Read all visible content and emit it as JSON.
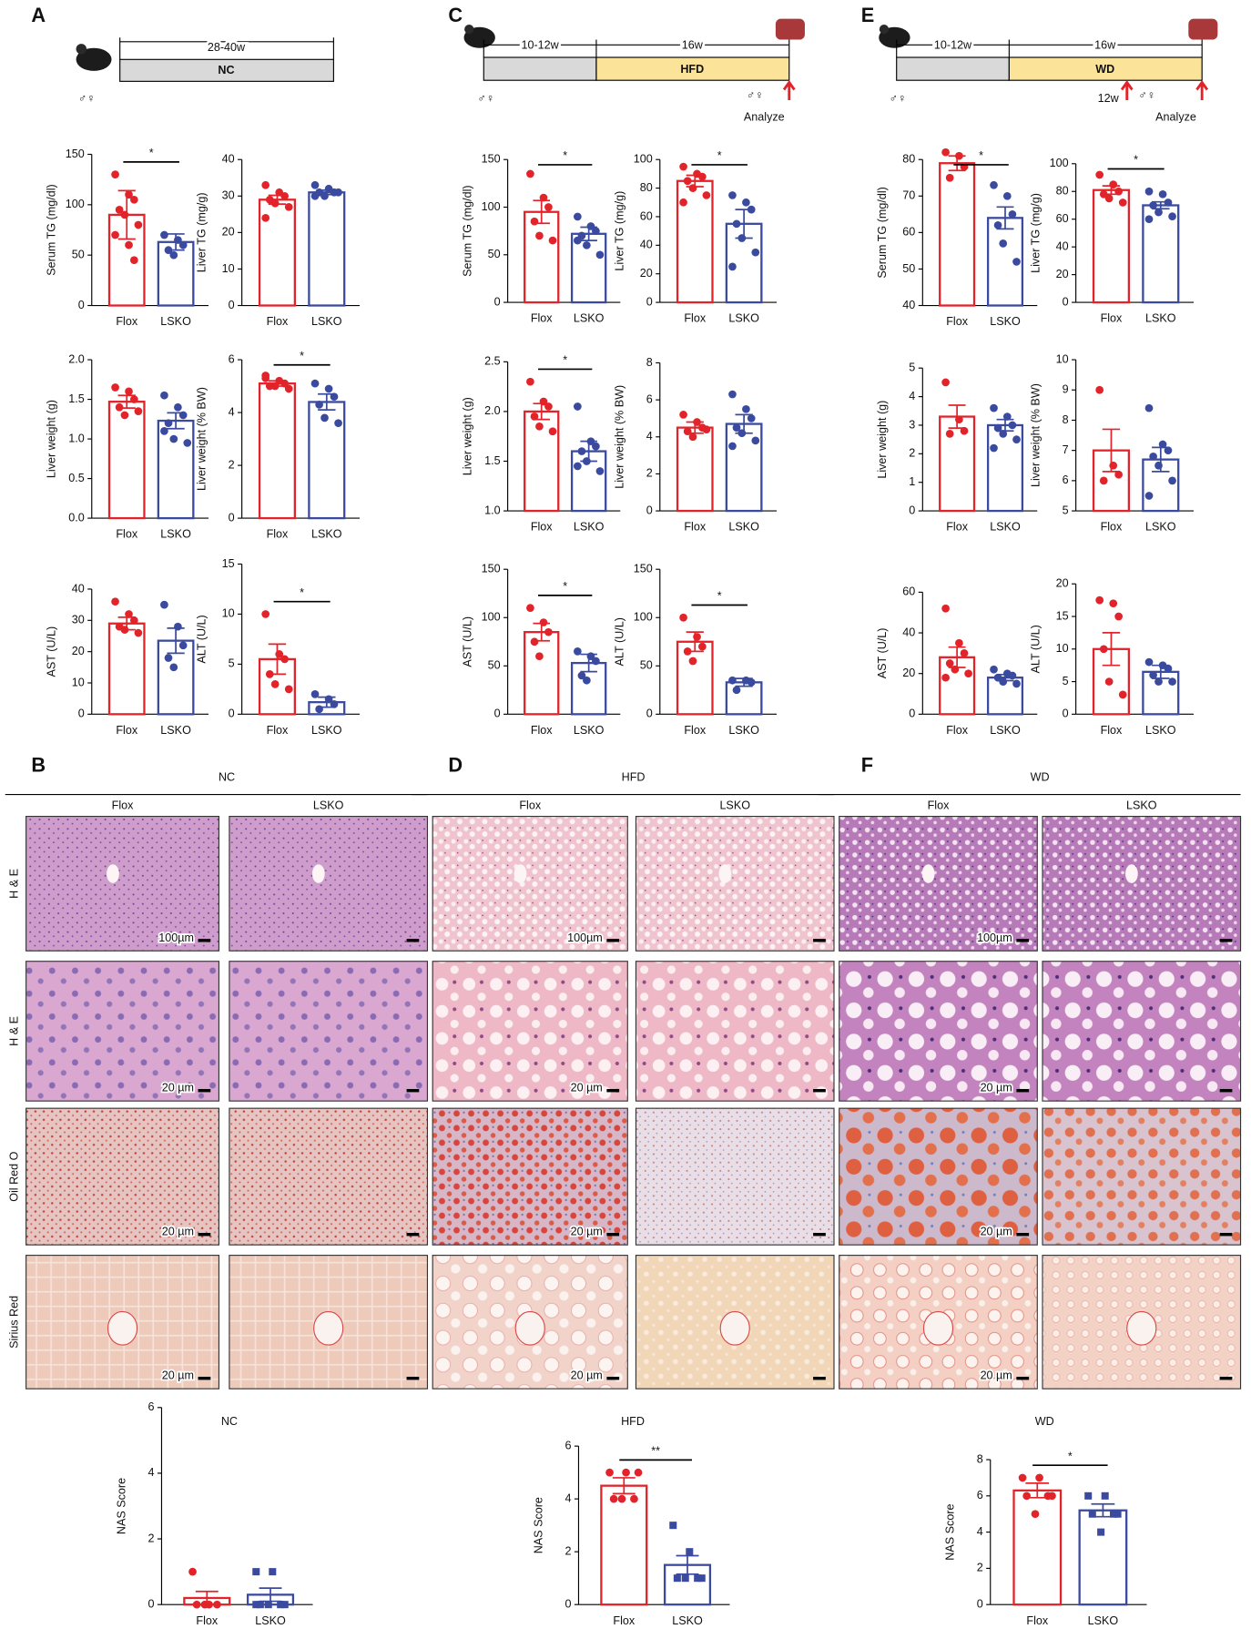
{
  "figure": {
    "panels": [
      "A",
      "B",
      "C",
      "D",
      "E",
      "F"
    ],
    "timelines": [
      {
        "duration": "28-40w",
        "diet": "NC",
        "sex": "♂♀"
      },
      {
        "early": "10-12w",
        "late": "16w",
        "diet": "HFD",
        "sex": "♂♀",
        "analyze": "Analyze"
      },
      {
        "early": "10-12w",
        "late": "16w",
        "diet": "WD",
        "sex": "♂♀",
        "mid": "12w",
        "analyze": "Analyze"
      }
    ],
    "histology": [
      {
        "diet": "NC",
        "columns": [
          "Flox",
          "LSKO"
        ]
      },
      {
        "diet": "HFD",
        "columns": [
          "Flox",
          "LSKO"
        ]
      },
      {
        "diet": "WD",
        "columns": [
          "Flox",
          "LSKO"
        ]
      }
    ],
    "stains": [
      "H & E",
      "H & E",
      "Oil Red O",
      "Sirius Red"
    ],
    "scale_bars": [
      "100µm",
      "20 µm"
    ],
    "nas_titles": [
      "NC",
      "HFD",
      "WD"
    ]
  },
  "chart_data": [
    {
      "type": "bar",
      "ylabel": "Serum TG (mg/dl)",
      "categories": [
        "Flox",
        "LSKO"
      ],
      "colors": [
        "#e3232a",
        "#3a4a9f"
      ],
      "markers": [
        "circle",
        "circle"
      ],
      "values": [
        90,
        63
      ],
      "errors": [
        24,
        8
      ],
      "points": [
        [
          130,
          110,
          105,
          95,
          90,
          80,
          70,
          60,
          45
        ],
        [
          70,
          65,
          60,
          55,
          50
        ]
      ],
      "ylim": [
        0,
        150
      ],
      "yticks": [
        0,
        50,
        100,
        150
      ],
      "significance": "*"
    },
    {
      "type": "bar",
      "ylabel": "Liver TG (mg/g)",
      "categories": [
        "Flox",
        "LSKO"
      ],
      "colors": [
        "#e3232a",
        "#3a4a9f"
      ],
      "markers": [
        "circle",
        "circle"
      ],
      "values": [
        29,
        31
      ],
      "errors": [
        1.2,
        0.6
      ],
      "points": [
        [
          33,
          31,
          30,
          29,
          28,
          27,
          24
        ],
        [
          33,
          32,
          31,
          31,
          30,
          31,
          30
        ]
      ],
      "ylim": [
        0,
        40
      ],
      "yticks": [
        0,
        10,
        20,
        30,
        40
      ]
    },
    {
      "type": "bar",
      "ylabel": "Liver weight (g)",
      "categories": [
        "Flox",
        "LSKO"
      ],
      "colors": [
        "#e3232a",
        "#3a4a9f"
      ],
      "markers": [
        "circle",
        "circle"
      ],
      "values": [
        1.47,
        1.23
      ],
      "errors": [
        0.08,
        0.1
      ],
      "points": [
        [
          1.65,
          1.6,
          1.5,
          1.4,
          1.3,
          1.35
        ],
        [
          1.55,
          1.4,
          1.3,
          1.2,
          1.0,
          0.95,
          1.1
        ]
      ],
      "ylim": [
        0,
        2
      ],
      "yticks": [
        {
          "value": 0,
          "label": "0.0"
        },
        0.5,
        {
          "value": 1,
          "label": "1.0"
        },
        1.5,
        {
          "value": 2,
          "label": "2.0"
        }
      ]
    },
    {
      "type": "bar",
      "ylabel": "Liver weight (% BW)",
      "categories": [
        "Flox",
        "LSKO"
      ],
      "colors": [
        "#e3232a",
        "#3a4a9f"
      ],
      "markers": [
        "circle",
        "circle"
      ],
      "values": [
        5.1,
        4.4
      ],
      "errors": [
        0.1,
        0.3
      ],
      "points": [
        [
          5.4,
          5.2,
          5.1,
          5.0,
          5.0,
          4.9,
          5.3
        ],
        [
          5.1,
          4.9,
          4.6,
          4.3,
          3.8,
          3.6
        ]
      ],
      "ylim": [
        0,
        6
      ],
      "yticks": [
        0,
        2,
        4,
        6
      ],
      "significance": "*"
    },
    {
      "type": "bar",
      "ylabel": "AST (U/L)",
      "categories": [
        "Flox",
        "LSKO"
      ],
      "colors": [
        "#e3232a",
        "#3a4a9f"
      ],
      "markers": [
        "circle",
        "circle"
      ],
      "values": [
        29,
        23.5
      ],
      "errors": [
        2,
        4
      ],
      "points": [
        [
          36,
          32,
          30,
          28,
          27,
          26
        ],
        [
          35,
          28,
          22,
          18,
          15
        ]
      ],
      "ylim": [
        0,
        40
      ],
      "yticks": [
        0,
        10,
        20,
        30,
        40
      ]
    },
    {
      "type": "bar",
      "ylabel": "ALT (U/L)",
      "categories": [
        "Flox",
        "LSKO"
      ],
      "colors": [
        "#e3232a",
        "#3a4a9f"
      ],
      "markers": [
        "circle",
        "circle"
      ],
      "values": [
        5.5,
        1.2
      ],
      "errors": [
        1.5,
        0.5
      ],
      "points": [
        [
          10,
          6,
          5.5,
          4,
          3,
          2.5
        ],
        [
          2,
          1.5,
          1,
          0.5
        ]
      ],
      "ylim": [
        0,
        15
      ],
      "yticks": [
        0,
        5,
        10,
        15
      ],
      "significance": "*"
    },
    {
      "type": "bar",
      "ylabel": "Serum TG (mg/dl)",
      "categories": [
        "Flox",
        "LSKO"
      ],
      "colors": [
        "#e3232a",
        "#3a4a9f"
      ],
      "markers": [
        "circle",
        "circle"
      ],
      "values": [
        95,
        72
      ],
      "errors": [
        12,
        7
      ],
      "points": [
        [
          135,
          110,
          100,
          85,
          70,
          65
        ],
        [
          90,
          80,
          75,
          70,
          60,
          50,
          65
        ]
      ],
      "ylim": [
        0,
        150
      ],
      "yticks": [
        0,
        50,
        100,
        150
      ],
      "significance": "*"
    },
    {
      "type": "bar",
      "ylabel": "Liver TG (mg/g)",
      "categories": [
        "Flox",
        "LSKO"
      ],
      "colors": [
        "#e3232a",
        "#3a4a9f"
      ],
      "markers": [
        "circle",
        "circle"
      ],
      "values": [
        85,
        55
      ],
      "errors": [
        4,
        10
      ],
      "points": [
        [
          95,
          90,
          88,
          85,
          80,
          75,
          70
        ],
        [
          75,
          70,
          65,
          55,
          45,
          35,
          25
        ]
      ],
      "ylim": [
        0,
        100
      ],
      "yticks": [
        0,
        20,
        40,
        60,
        80,
        100
      ],
      "significance": "*"
    },
    {
      "type": "bar",
      "ylabel": "Liver weight (g)",
      "categories": [
        "Flox",
        "LSKO"
      ],
      "colors": [
        "#e3232a",
        "#3a4a9f"
      ],
      "markers": [
        "circle",
        "circle"
      ],
      "values": [
        2.0,
        1.6
      ],
      "errors": [
        0.08,
        0.1
      ],
      "points": [
        [
          2.3,
          2.1,
          2.05,
          1.95,
          1.85,
          1.8
        ],
        [
          2.05,
          1.7,
          1.65,
          1.6,
          1.5,
          1.4,
          1.45
        ]
      ],
      "ylim": [
        1,
        2.5
      ],
      "yticks": [
        {
          "value": 1,
          "label": "1.0"
        },
        1.5,
        {
          "value": 2,
          "label": "2.0"
        },
        2.5
      ],
      "significance": "*"
    },
    {
      "type": "bar",
      "ylabel": "Liver weight (% BW)",
      "categories": [
        "Flox",
        "LSKO"
      ],
      "colors": [
        "#e3232a",
        "#3a4a9f"
      ],
      "markers": [
        "circle",
        "circle"
      ],
      "values": [
        4.5,
        4.7
      ],
      "errors": [
        0.3,
        0.5
      ],
      "points": [
        [
          5.2,
          4.8,
          4.5,
          4.3,
          4.0,
          4.4
        ],
        [
          6.3,
          5.5,
          5.0,
          4.5,
          4.2,
          3.8,
          3.5
        ]
      ],
      "ylim": [
        0,
        8
      ],
      "yticks": [
        0,
        2,
        4,
        6,
        8
      ]
    },
    {
      "type": "bar",
      "ylabel": "AST (U/L)",
      "categories": [
        "Flox",
        "LSKO"
      ],
      "colors": [
        "#e3232a",
        "#3a4a9f"
      ],
      "markers": [
        "circle",
        "circle"
      ],
      "values": [
        85,
        53
      ],
      "errors": [
        9,
        9
      ],
      "points": [
        [
          110,
          95,
          85,
          75,
          60
        ],
        [
          65,
          60,
          55,
          40,
          35
        ]
      ],
      "ylim": [
        0,
        150
      ],
      "yticks": [
        0,
        50,
        100,
        150
      ],
      "significance": "*"
    },
    {
      "type": "bar",
      "ylabel": "ALT (U/L)",
      "categories": [
        "Flox",
        "LSKO"
      ],
      "colors": [
        "#e3232a",
        "#3a4a9f"
      ],
      "markers": [
        "circle",
        "circle"
      ],
      "values": [
        75,
        33
      ],
      "errors": [
        10,
        4
      ],
      "points": [
        [
          100,
          80,
          70,
          65,
          55
        ],
        [
          35,
          35,
          33,
          25
        ]
      ],
      "ylim": [
        0,
        150
      ],
      "yticks": [
        0,
        50,
        100,
        150
      ],
      "significance": "*"
    },
    {
      "type": "bar",
      "ylabel": "Serum TG (mg/dl)",
      "categories": [
        "Flox",
        "LSKO"
      ],
      "colors": [
        "#e3232a",
        "#3a4a9f"
      ],
      "markers": [
        "circle",
        "circle"
      ],
      "values": [
        79,
        64
      ],
      "errors": [
        2,
        3
      ],
      "points": [
        [
          82,
          81,
          78,
          75
        ],
        [
          73,
          70,
          65,
          62,
          57,
          52
        ]
      ],
      "ylim": [
        40,
        80
      ],
      "yticks": [
        40,
        50,
        60,
        70,
        80
      ],
      "significance": "*"
    },
    {
      "type": "bar",
      "ylabel": "Liver TG (mg/g)",
      "categories": [
        "Flox",
        "LSKO"
      ],
      "colors": [
        "#e3232a",
        "#3a4a9f"
      ],
      "markers": [
        "circle",
        "circle"
      ],
      "values": [
        81,
        70
      ],
      "errors": [
        3,
        2.5
      ],
      "points": [
        [
          92,
          85,
          80,
          78,
          75,
          72
        ],
        [
          80,
          78,
          72,
          70,
          65,
          62,
          60
        ]
      ],
      "ylim": [
        0,
        100
      ],
      "yticks": [
        0,
        20,
        40,
        60,
        80,
        100
      ],
      "significance": "*"
    },
    {
      "type": "bar",
      "ylabel": "Liver weight (g)",
      "categories": [
        "Flox",
        "LSKO"
      ],
      "colors": [
        "#e3232a",
        "#3a4a9f"
      ],
      "markers": [
        "circle",
        "circle"
      ],
      "values": [
        3.3,
        3.0
      ],
      "errors": [
        0.4,
        0.2
      ],
      "points": [
        [
          4.5,
          3.2,
          2.8,
          2.7
        ],
        [
          3.6,
          3.3,
          3.0,
          2.9,
          2.7,
          2.5,
          2.2
        ]
      ],
      "ylim": [
        0,
        5
      ],
      "yticks": [
        0,
        1,
        2,
        3,
        4,
        5
      ]
    },
    {
      "type": "bar",
      "ylabel": "Liver weight (% BW)",
      "categories": [
        "Flox",
        "LSKO"
      ],
      "colors": [
        "#e3232a",
        "#3a4a9f"
      ],
      "markers": [
        "circle",
        "circle"
      ],
      "values": [
        7.0,
        6.7
      ],
      "errors": [
        0.7,
        0.4
      ],
      "points": [
        [
          9.0,
          6.5,
          6.2,
          6.0
        ],
        [
          8.4,
          7.2,
          7.0,
          6.8,
          6.5,
          6.0,
          5.5
        ]
      ],
      "ylim": [
        5,
        10
      ],
      "yticks": [
        5,
        6,
        7,
        8,
        9,
        10
      ]
    },
    {
      "type": "bar",
      "ylabel": "AST (U/L)",
      "categories": [
        "Flox",
        "LSKO"
      ],
      "colors": [
        "#e3232a",
        "#3a4a9f"
      ],
      "markers": [
        "circle",
        "circle"
      ],
      "values": [
        28,
        18
      ],
      "errors": [
        5,
        1.5
      ],
      "points": [
        [
          52,
          35,
          30,
          25,
          22,
          20,
          18
        ],
        [
          22,
          20,
          19,
          18,
          16,
          15
        ]
      ],
      "ylim": [
        0,
        60
      ],
      "yticks": [
        0,
        20,
        40,
        60
      ]
    },
    {
      "type": "bar",
      "ylabel": "ALT (U/L)",
      "categories": [
        "Flox",
        "LSKO"
      ],
      "colors": [
        "#e3232a",
        "#3a4a9f"
      ],
      "markers": [
        "circle",
        "circle"
      ],
      "values": [
        10,
        6.5
      ],
      "errors": [
        2.5,
        1
      ],
      "points": [
        [
          17.5,
          17,
          15,
          10,
          5,
          3
        ],
        [
          8,
          7.5,
          7,
          6,
          5,
          5
        ]
      ],
      "ylim": [
        0,
        20
      ],
      "yticks": [
        0,
        5,
        10,
        15,
        20
      ]
    },
    {
      "type": "bar",
      "ylabel": "NAS Score",
      "categories": [
        "Flox",
        "LSKO"
      ],
      "colors": [
        "#e3232a",
        "#3a4a9f"
      ],
      "markers": [
        "circle",
        "square"
      ],
      "values": [
        0.2,
        0.3
      ],
      "errors": [
        0.2,
        0.2
      ],
      "points": [
        [
          1,
          0,
          0,
          0,
          0
        ],
        [
          1,
          1,
          0,
          0,
          0,
          0,
          0
        ]
      ],
      "ylim": [
        0,
        6
      ],
      "yticks": [
        0,
        2,
        4,
        6
      ]
    },
    {
      "type": "bar",
      "ylabel": "NAS Score",
      "categories": [
        "Flox",
        "LSKO"
      ],
      "colors": [
        "#e3232a",
        "#3a4a9f"
      ],
      "markers": [
        "circle",
        "square"
      ],
      "values": [
        4.5,
        1.5
      ],
      "errors": [
        0.3,
        0.35
      ],
      "points": [
        [
          5,
          5,
          4,
          4,
          4,
          5
        ],
        [
          3,
          2,
          1,
          1,
          1,
          1
        ]
      ],
      "ylim": [
        0,
        6
      ],
      "yticks": [
        0,
        2,
        4,
        6
      ],
      "significance": "**"
    },
    {
      "type": "bar",
      "ylabel": "NAS Score",
      "categories": [
        "Flox",
        "LSKO"
      ],
      "colors": [
        "#e3232a",
        "#3a4a9f"
      ],
      "markers": [
        "circle",
        "square"
      ],
      "values": [
        6.3,
        5.2
      ],
      "errors": [
        0.4,
        0.35
      ],
      "points": [
        [
          7,
          7,
          6,
          6,
          5,
          6
        ],
        [
          6,
          6,
          5,
          5,
          4,
          5
        ]
      ],
      "ylim": [
        0,
        8
      ],
      "yticks": [
        0,
        2,
        4,
        6,
        8
      ],
      "significance": "*"
    }
  ]
}
